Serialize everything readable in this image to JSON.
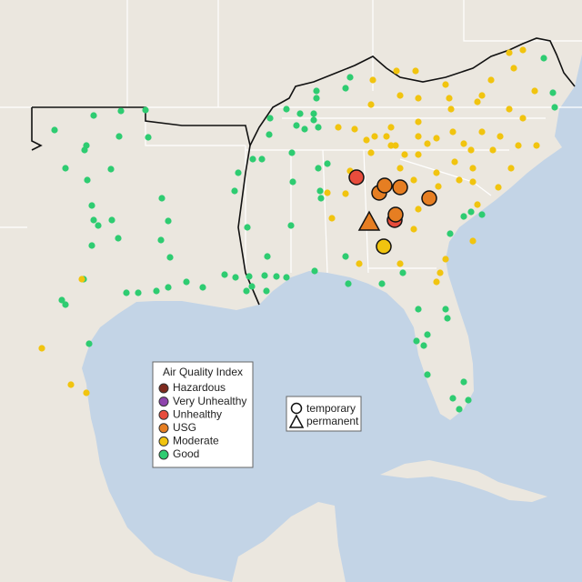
{
  "legend": {
    "title": "Air Quality Index",
    "items": [
      {
        "label": "Hazardous",
        "color": "#7e2a1e"
      },
      {
        "label": "Very Unhealthy",
        "color": "#8e44ad"
      },
      {
        "label": "Unhealthy",
        "color": "#e74c3c"
      },
      {
        "label": "USG",
        "color": "#e67e22"
      },
      {
        "label": "Moderate",
        "color": "#f1c40f"
      },
      {
        "label": "Good",
        "color": "#2ecc71"
      }
    ]
  },
  "monitor_legend": {
    "items": [
      "temporary",
      "permanent"
    ]
  }
}
